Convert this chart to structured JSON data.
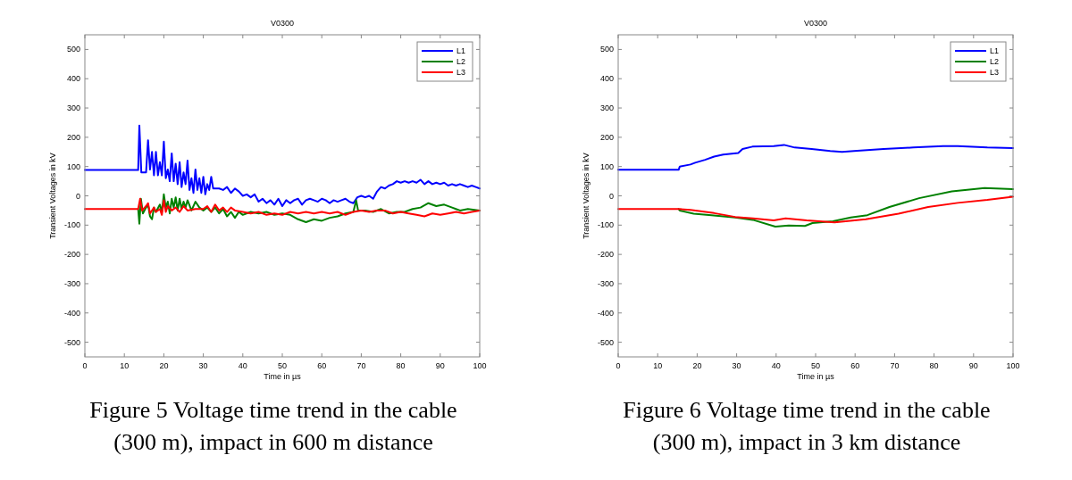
{
  "chart_data": [
    {
      "type": "line",
      "title": "V0300",
      "xlabel": "Time in µs",
      "ylabel": "Transient Voltages in kV",
      "xlim": [
        0,
        100
      ],
      "xticks": [
        0,
        10,
        20,
        30,
        40,
        50,
        60,
        70,
        80,
        90,
        100
      ],
      "ylim": [
        -550,
        550
      ],
      "yticks": [
        -500,
        -400,
        -300,
        -200,
        -100,
        0,
        100,
        200,
        300,
        400,
        500
      ],
      "legend": "top right",
      "line_style": "solid",
      "annotations": [
        "Figure 5 Voltage time trend in the cable (300 m), impact in 600 m distance"
      ],
      "series": [
        {
          "name": "L1",
          "color": "#0000ff",
          "x": [
            0,
            13.5,
            13.8,
            14.3,
            15.5,
            16,
            16.5,
            17,
            17.5,
            18,
            18.5,
            19,
            19.5,
            20,
            20.5,
            21,
            21.5,
            22,
            22.5,
            23,
            23.5,
            24,
            24.5,
            25,
            25.5,
            26,
            26.5,
            27,
            27.5,
            28,
            28.5,
            29,
            29.5,
            30,
            30.5,
            31,
            31.5,
            32,
            32.5,
            34,
            35,
            36,
            37,
            38,
            39,
            40,
            41,
            42,
            43,
            44,
            45,
            46,
            47,
            48,
            49,
            50,
            51,
            52,
            53,
            54,
            55,
            56,
            57,
            58,
            59,
            60,
            61,
            62,
            63,
            64,
            65,
            66,
            67,
            68,
            69,
            70,
            71,
            72,
            73,
            74,
            75,
            76,
            77,
            78,
            79,
            80,
            81,
            82,
            83,
            84,
            85,
            86,
            87,
            88,
            89,
            90,
            91,
            92,
            93,
            94,
            95,
            96,
            97,
            98,
            99,
            100
          ],
          "values": [
            88,
            88,
            240,
            80,
            80,
            190,
            90,
            150,
            70,
            150,
            70,
            115,
            70,
            185,
            60,
            90,
            50,
            145,
            50,
            110,
            40,
            115,
            30,
            80,
            40,
            120,
            20,
            60,
            10,
            90,
            20,
            60,
            10,
            65,
            5,
            40,
            20,
            65,
            25,
            25,
            20,
            30,
            10,
            25,
            15,
            0,
            5,
            -5,
            5,
            -20,
            -10,
            -25,
            -15,
            -30,
            -10,
            -35,
            -15,
            -25,
            -15,
            -10,
            -30,
            -15,
            -10,
            -15,
            -20,
            -10,
            -15,
            -25,
            -15,
            -20,
            -15,
            -10,
            -20,
            -25,
            -5,
            0,
            -5,
            0,
            -10,
            15,
            30,
            25,
            35,
            40,
            50,
            45,
            50,
            45,
            50,
            45,
            55,
            40,
            50,
            40,
            45,
            40,
            45,
            35,
            40,
            35,
            40,
            35,
            30,
            35,
            30,
            25
          ]
        },
        {
          "name": "L2",
          "color": "#008000",
          "x": [
            13.5,
            13.8,
            14.2,
            14.7,
            15.5,
            16,
            16.5,
            17,
            17.5,
            18,
            19,
            19.5,
            20,
            20.5,
            21,
            21.5,
            22,
            22.5,
            23,
            23.5,
            24,
            24.5,
            25,
            25.5,
            26,
            27,
            28,
            29,
            30,
            31,
            32,
            33,
            34,
            35,
            36,
            37,
            38,
            39,
            40,
            42,
            44,
            46,
            48,
            50,
            52,
            54,
            56,
            58,
            60,
            62,
            64,
            66,
            68,
            68.7,
            69.2,
            71,
            73,
            75,
            77,
            79,
            81,
            83,
            85,
            87,
            89,
            91,
            93,
            95,
            97,
            100
          ],
          "values": [
            -45,
            -95,
            -10,
            -60,
            -40,
            -30,
            -70,
            -80,
            -40,
            -55,
            -30,
            -55,
            5,
            -40,
            -20,
            -60,
            -10,
            -40,
            -5,
            -50,
            -10,
            -45,
            -20,
            -40,
            -15,
            -50,
            -20,
            -40,
            -50,
            -40,
            -55,
            -40,
            -60,
            -45,
            -70,
            -55,
            -75,
            -55,
            -65,
            -55,
            -60,
            -55,
            -65,
            -60,
            -65,
            -80,
            -90,
            -80,
            -85,
            -75,
            -70,
            -60,
            -55,
            -15,
            -50,
            -50,
            -55,
            -45,
            -60,
            -55,
            -55,
            -45,
            -40,
            -25,
            -35,
            -30,
            -40,
            -50,
            -45,
            -50
          ]
        },
        {
          "name": "L3",
          "color": "#ff0000",
          "x": [
            0,
            13.5,
            14,
            14.5,
            15.5,
            16,
            16.5,
            17.5,
            18,
            19,
            19.5,
            20,
            20.5,
            21,
            22,
            23,
            24,
            25,
            26,
            28,
            30,
            31,
            32,
            33,
            34,
            35,
            36,
            37,
            38,
            40,
            42,
            44,
            46,
            48,
            50,
            52,
            54,
            56,
            58,
            60,
            62,
            64,
            66,
            68,
            70,
            72,
            74,
            76,
            78,
            80,
            82,
            84,
            86,
            88,
            90,
            92,
            94,
            96,
            98,
            100
          ],
          "values": [
            -45,
            -45,
            -10,
            -50,
            -35,
            -25,
            -60,
            -40,
            -55,
            -45,
            -65,
            -15,
            -55,
            -35,
            -50,
            -40,
            -55,
            -35,
            -50,
            -45,
            -45,
            -35,
            -55,
            -30,
            -50,
            -40,
            -55,
            -40,
            -50,
            -55,
            -60,
            -55,
            -65,
            -60,
            -65,
            -55,
            -60,
            -55,
            -60,
            -55,
            -60,
            -55,
            -65,
            -55,
            -50,
            -55,
            -50,
            -50,
            -60,
            -55,
            -60,
            -65,
            -70,
            -60,
            -65,
            -60,
            -55,
            -60,
            -55,
            -50
          ]
        }
      ]
    },
    {
      "type": "line",
      "title": "V0300",
      "xlabel": "Time in µs",
      "ylabel": "Transient Voltages in kV",
      "xlim": [
        0,
        100
      ],
      "xticks": [
        0,
        10,
        20,
        30,
        40,
        50,
        60,
        70,
        80,
        90,
        100
      ],
      "ylim": [
        -550,
        550
      ],
      "yticks": [
        -500,
        -400,
        -300,
        -200,
        -100,
        0,
        100,
        200,
        300,
        400,
        500
      ],
      "legend": "top right",
      "line_style": "solid",
      "annotations": [
        "Figure 6 Voltage time trend in the cable (300 m), impact in 3 km distance"
      ],
      "series": [
        {
          "name": "L1",
          "color": "#0000ff",
          "x": [
            0,
            15.3,
            15.6,
            18.3,
            19.5,
            22,
            24.3,
            26.6,
            30.4,
            31.5,
            34,
            39.4,
            42,
            44.7,
            49,
            53.7,
            56.7,
            59.7,
            67.2,
            74.7,
            82.3,
            86,
            93.5,
            100
          ],
          "values": [
            89,
            89,
            100,
            107,
            113,
            123,
            134,
            141,
            146,
            160,
            168,
            170,
            174,
            165,
            160,
            153,
            150,
            153,
            160,
            165,
            170,
            170,
            165,
            163
          ]
        },
        {
          "name": "L2",
          "color": "#008000",
          "x": [
            15.3,
            15.6,
            19.1,
            23.6,
            29.6,
            34.1,
            39.8,
            43.2,
            47.3,
            49.2,
            54.4,
            58.9,
            63.1,
            68.7,
            76.2,
            84.5,
            92.8,
            100
          ],
          "values": [
            -45,
            -50,
            -61,
            -66,
            -74,
            -82,
            -105,
            -101,
            -103,
            -93,
            -87,
            -74,
            -66,
            -38,
            -8,
            15,
            27,
            23
          ]
        },
        {
          "name": "L3",
          "color": "#ff0000",
          "x": [
            0,
            15.5,
            18.3,
            24.3,
            29.6,
            34.1,
            39.4,
            42.4,
            47.7,
            54.8,
            62.7,
            71,
            78.5,
            86,
            93.5,
            100
          ],
          "values": [
            -45,
            -45,
            -48,
            -59,
            -72,
            -77,
            -84,
            -77,
            -84,
            -91,
            -80,
            -61,
            -38,
            -24,
            -14,
            -3
          ]
        }
      ]
    }
  ]
}
